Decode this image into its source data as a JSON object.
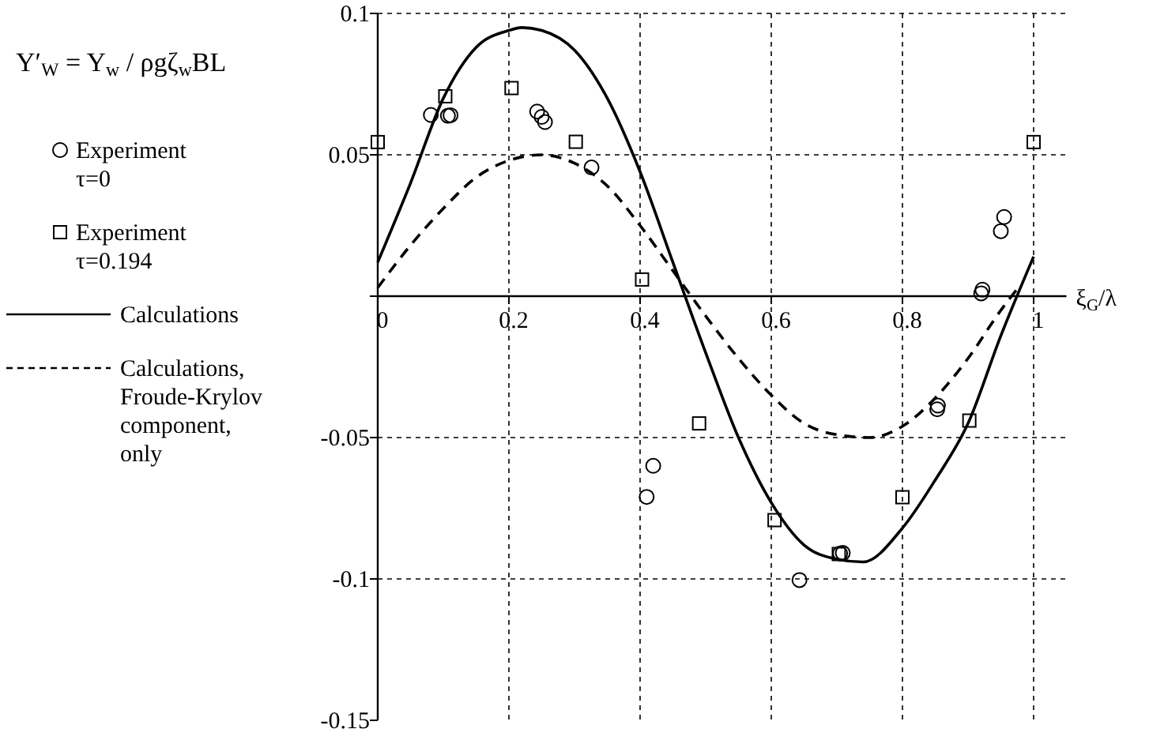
{
  "chart_data": {
    "type": "scatter",
    "ylabel": "Y′$_{W}$ = Y$_{w}$ / ρgζ$_{w}$BL",
    "xlabel": "ξ$_{G}$/λ",
    "xlim": [
      0,
      1.05
    ],
    "ylim": [
      -0.15,
      0.1
    ],
    "xticks": [
      0,
      0.2,
      0.4,
      0.6,
      0.8,
      1
    ],
    "yticks": [
      0.1,
      0.05,
      {
        "value": 0,
        "label": null
      },
      -0.05,
      -0.1,
      -0.15
    ],
    "grid": true,
    "legend": "left",
    "series": [
      {
        "name": "Experiment τ=0",
        "marker": "circle",
        "color": "#000000",
        "x": [
          0.081,
          0.107,
          0.111,
          0.243,
          0.25,
          0.255,
          0.326,
          0.41,
          0.42,
          0.643,
          0.705,
          0.709,
          0.853,
          0.854,
          0.92,
          0.922,
          0.95,
          0.955
        ],
        "values": [
          0.0641,
          0.0638,
          0.064,
          0.0653,
          0.0634,
          0.0616,
          0.0455,
          -0.071,
          -0.06,
          -0.1004,
          -0.091,
          -0.0908,
          -0.04,
          -0.0387,
          0.001,
          0.0023,
          0.023,
          0.028
        ]
      },
      {
        "name": "Experiment τ=0.194",
        "marker": "square",
        "color": "#000000",
        "x": [
          0,
          0.103,
          0.204,
          0.302,
          0.403,
          0.49,
          0.605,
          0.703,
          0.8,
          0.902,
          1
        ],
        "values": [
          0.0545,
          0.0707,
          0.0736,
          0.0546,
          0.0059,
          -0.045,
          -0.0792,
          -0.0912,
          -0.0711,
          -0.044,
          0.0545
        ]
      },
      {
        "name": "Calculations",
        "type": "line",
        "line_style": "solid",
        "color": "#000000",
        "x": [
          0,
          0.05,
          0.1,
          0.15,
          0.2,
          0.22,
          0.25,
          0.3,
          0.35,
          0.4,
          0.45,
          0.5,
          0.55,
          0.6,
          0.65,
          0.7,
          0.74,
          0.8,
          0.85,
          0.9,
          0.95,
          1
        ],
        "values": [
          0.012,
          0.04,
          0.07,
          0.088,
          0.094,
          0.095,
          0.094,
          0.087,
          0.07,
          0.044,
          0.012,
          -0.02,
          -0.05,
          -0.073,
          -0.088,
          -0.093,
          -0.094,
          -0.082,
          -0.065,
          -0.045,
          -0.014,
          0.014
        ]
      },
      {
        "name": "Calculations, Froude-Krylov component, only",
        "type": "line",
        "line_style": "dashed",
        "color": "#000000",
        "x": [
          0,
          0.05,
          0.1,
          0.15,
          0.2,
          0.25,
          0.3,
          0.35,
          0.4,
          0.45,
          0.5,
          0.55,
          0.6,
          0.65,
          0.7,
          0.75,
          0.8,
          0.85,
          0.9,
          0.95,
          0.98
        ],
        "values": [
          0.003,
          0.018,
          0.031,
          0.042,
          0.048,
          0.05,
          0.047,
          0.039,
          0.025,
          0.009,
          -0.007,
          -0.022,
          -0.035,
          -0.045,
          -0.049,
          -0.05,
          -0.046,
          -0.036,
          -0.022,
          -0.005,
          0.004
        ]
      }
    ]
  }
}
